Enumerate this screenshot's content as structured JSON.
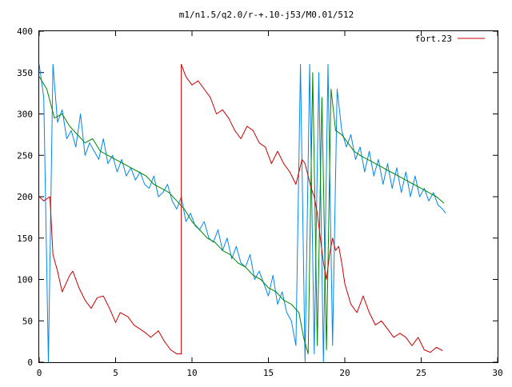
{
  "chart_data": {
    "type": "line",
    "title": "m1/n1.5/q2.0/r-+.10-j53/M0.01/512",
    "xlabel": "",
    "ylabel": "",
    "xlim": [
      0,
      30
    ],
    "ylim": [
      0,
      400
    ],
    "x_ticks": [
      0,
      5,
      10,
      15,
      20,
      25,
      30
    ],
    "y_ticks": [
      0,
      50,
      100,
      150,
      200,
      250,
      300,
      350,
      400
    ],
    "grid": false,
    "legend_position": "top-right",
    "series": [
      {
        "name": "fort.23",
        "color": "#cc0000",
        "style": "line",
        "x": [
          0,
          0.3,
          0.7,
          0.9,
          1.2,
          1.5,
          2.0,
          2.2,
          2.6,
          3.0,
          3.4,
          3.8,
          4.2,
          4.6,
          5.0,
          5.3,
          5.8,
          6.2,
          6.6,
          7.0,
          7.3,
          7.8,
          8.2,
          8.6,
          9.0,
          9.3,
          9.3,
          9.6,
          10.0,
          10.4,
          10.8,
          11.2,
          11.6,
          12.0,
          12.4,
          12.8,
          13.2,
          13.6,
          14.0,
          14.4,
          14.8,
          15.2,
          15.6,
          16.0,
          16.4,
          16.8,
          17.0,
          17.2,
          17.4,
          17.6,
          17.8,
          18.0,
          18.2,
          18.4,
          18.6,
          18.8,
          19.0,
          19.2,
          19.4,
          19.6,
          19.8,
          20.0,
          20.4,
          20.8,
          21.2,
          21.6,
          22.0,
          22.4,
          22.8,
          23.2,
          23.6,
          24.0,
          24.4,
          24.8,
          25.2,
          25.6,
          26.0,
          26.4
        ],
        "y": [
          200,
          195,
          200,
          130,
          110,
          85,
          105,
          110,
          90,
          75,
          65,
          78,
          80,
          65,
          48,
          60,
          55,
          45,
          40,
          35,
          30,
          38,
          25,
          15,
          10,
          10,
          360,
          345,
          335,
          340,
          330,
          320,
          300,
          305,
          295,
          280,
          270,
          285,
          280,
          265,
          260,
          240,
          255,
          240,
          230,
          215,
          230,
          245,
          240,
          225,
          210,
          200,
          180,
          150,
          120,
          100,
          130,
          150,
          135,
          140,
          120,
          95,
          70,
          60,
          80,
          60,
          45,
          50,
          40,
          30,
          35,
          30,
          20,
          30,
          15,
          12,
          18,
          14
        ]
      },
      {
        "name": "",
        "color": "#008800",
        "style": "line",
        "x": [
          0,
          0.5,
          1.0,
          1.5,
          2.0,
          2.5,
          3.0,
          3.5,
          4.0,
          4.5,
          5.0,
          5.5,
          6.0,
          6.5,
          7.0,
          7.5,
          8.0,
          8.5,
          9.0,
          9.5,
          10.0,
          10.5,
          11.0,
          11.5,
          12.0,
          12.5,
          13.0,
          13.5,
          14.0,
          14.5,
          15.0,
          15.5,
          16.0,
          16.5,
          17.0,
          17.3,
          17.6,
          17.9,
          18.2,
          18.5,
          18.8,
          19.1,
          19.4,
          19.8,
          20.2,
          20.6,
          21.0,
          21.5,
          22.0,
          22.5,
          23.0,
          23.5,
          24.0,
          24.5,
          25.0,
          25.5,
          26.0,
          26.5
        ],
        "y": [
          345,
          330,
          295,
          300,
          285,
          275,
          265,
          270,
          255,
          250,
          245,
          240,
          235,
          230,
          225,
          215,
          210,
          205,
          195,
          185,
          170,
          160,
          150,
          145,
          135,
          130,
          120,
          115,
          105,
          100,
          90,
          85,
          75,
          70,
          60,
          30,
          10,
          350,
          20,
          320,
          15,
          330,
          280,
          275,
          265,
          255,
          250,
          245,
          240,
          235,
          230,
          225,
          220,
          215,
          210,
          205,
          200,
          192
        ]
      },
      {
        "name": "",
        "color": "#0088ee",
        "style": "noisy-line",
        "x": [
          0,
          0.3,
          0.6,
          0.9,
          1.2,
          1.5,
          1.8,
          2.1,
          2.4,
          2.7,
          3.0,
          3.3,
          3.6,
          3.9,
          4.2,
          4.5,
          4.8,
          5.1,
          5.4,
          5.7,
          6.0,
          6.3,
          6.6,
          6.9,
          7.2,
          7.5,
          7.8,
          8.1,
          8.4,
          8.7,
          9.0,
          9.3,
          9.6,
          9.9,
          10.2,
          10.5,
          10.8,
          11.1,
          11.4,
          11.7,
          12.0,
          12.3,
          12.6,
          12.9,
          13.2,
          13.5,
          13.8,
          14.1,
          14.4,
          14.7,
          15.0,
          15.3,
          15.6,
          15.9,
          16.2,
          16.5,
          16.8,
          17.1,
          17.4,
          17.7,
          18.0,
          18.3,
          18.6,
          18.9,
          19.2,
          19.5,
          19.8,
          20.1,
          20.4,
          20.7,
          21.0,
          21.3,
          21.6,
          21.9,
          22.2,
          22.5,
          22.8,
          23.1,
          23.4,
          23.7,
          24.0,
          24.3,
          24.6,
          24.9,
          25.2,
          25.5,
          25.8,
          26.1,
          26.4,
          26.6
        ],
        "y": [
          360,
          320,
          0,
          360,
          290,
          305,
          270,
          280,
          260,
          300,
          250,
          265,
          255,
          245,
          270,
          240,
          250,
          230,
          245,
          225,
          235,
          220,
          230,
          215,
          210,
          225,
          200,
          205,
          215,
          195,
          185,
          200,
          170,
          180,
          165,
          160,
          170,
          150,
          145,
          160,
          135,
          150,
          125,
          140,
          120,
          115,
          130,
          100,
          110,
          95,
          80,
          105,
          70,
          85,
          60,
          50,
          20,
          360,
          0,
          360,
          10,
          350,
          0,
          360,
          20,
          330,
          280,
          260,
          275,
          245,
          260,
          230,
          255,
          225,
          245,
          215,
          240,
          210,
          235,
          205,
          230,
          200,
          225,
          200,
          210,
          195,
          205,
          190,
          185,
          180
        ]
      }
    ]
  }
}
